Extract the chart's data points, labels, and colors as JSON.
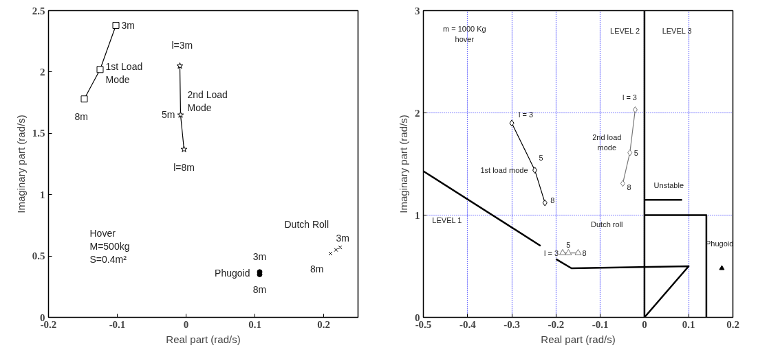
{
  "chart_data": [
    {
      "type": "scatter",
      "xlabel": "Real part (rad/s)",
      "ylabel": "Imaginary part (rad/s)",
      "xlim": [
        -0.2,
        0.25
      ],
      "ylim": [
        0,
        2.5
      ],
      "xticks": [
        -0.2,
        -0.1,
        0,
        0.1,
        0.2
      ],
      "yticks": [
        0,
        0.5,
        1,
        1.5,
        2,
        2.5
      ],
      "grid": false,
      "series": [
        {
          "type": "line",
          "marker": "square",
          "color": "#000000",
          "x": [
            -0.102,
            -0.125,
            -0.148
          ],
          "values": [
            2.38,
            2.02,
            1.78
          ]
        },
        {
          "type": "line",
          "marker": "star",
          "color": "#000000",
          "x": [
            -0.009,
            -0.008,
            -0.003
          ],
          "values": [
            2.05,
            1.65,
            1.37
          ]
        },
        {
          "marker": "circle",
          "color": "#000000",
          "x": [
            0.107,
            0.107
          ],
          "values": [
            0.37,
            0.35
          ]
        },
        {
          "marker": "cross",
          "color": "#000000",
          "x": [
            0.21,
            0.218,
            0.224
          ],
          "values": [
            0.52,
            0.55,
            0.57
          ]
        }
      ],
      "annotations": [
        {
          "text": "3m",
          "x": -0.102,
          "y": 2.38
        },
        "1st Load\nMode",
        {
          "text": "8m",
          "x": -0.148,
          "y": 1.78
        },
        {
          "text": "l=3m",
          "x": -0.009,
          "y": 2.05
        },
        "2nd Load\nMode",
        {
          "text": "5m",
          "x": -0.008,
          "y": 1.65
        },
        {
          "text": "l=8m",
          "x": -0.003,
          "y": 1.37
        },
        "Hover\nM=500kg\nS=0.4m²",
        {
          "text": "Phugoid",
          "x": 0.107,
          "y": 0.36
        },
        {
          "text": "3m",
          "x": 0.107,
          "y": 0.37
        },
        {
          "text": "8m",
          "x": 0.107,
          "y": 0.35
        },
        "Dutch Roll",
        {
          "text": "3m",
          "x": 0.224,
          "y": 0.57
        },
        {
          "text": "8m",
          "x": 0.21,
          "y": 0.52
        }
      ]
    },
    {
      "type": "scatter",
      "xlabel": "Real part (rad/s)",
      "ylabel": "Imaginary part (rad/s)",
      "xlim": [
        -0.5,
        0.2
      ],
      "ylim": [
        0,
        3
      ],
      "xticks": [
        -0.5,
        -0.4,
        -0.3,
        -0.2,
        -0.1,
        0,
        0.1,
        0.2
      ],
      "yticks": [
        0,
        1,
        2,
        3
      ],
      "grid": true,
      "series": [
        {
          "type": "line",
          "marker": "diamond",
          "color": "#000000",
          "x": [
            -0.3,
            -0.248,
            -0.225
          ],
          "values": [
            1.9,
            1.44,
            1.12
          ]
        },
        {
          "type": "line",
          "marker": "diamond",
          "color": "#777777",
          "x": [
            -0.021,
            -0.033,
            -0.049
          ],
          "values": [
            2.03,
            1.61,
            1.31
          ]
        },
        {
          "type": "line",
          "marker": "triangle",
          "color": "#777777",
          "x": [
            -0.185,
            -0.172,
            -0.15
          ],
          "values": [
            0.63,
            0.63,
            0.63
          ]
        },
        {
          "marker": "triangle",
          "color": "#000000",
          "x": [
            0.175
          ],
          "values": [
            0.48
          ]
        },
        {
          "type": "line",
          "marker": "none",
          "color": "#000000",
          "x": [
            -0.5,
            -0.235
          ],
          "values": [
            1.43,
            0.7
          ]
        },
        {
          "type": "line",
          "marker": "none",
          "color": "#000000",
          "x": [
            -0.2,
            -0.165,
            0.1,
            0
          ],
          "values": [
            0.57,
            0.48,
            0.5,
            0
          ]
        },
        {
          "type": "line",
          "marker": "none",
          "color": "#000000",
          "x": [
            0,
            0.14,
            0.14
          ],
          "values": [
            1,
            1,
            0
          ]
        },
        {
          "type": "line",
          "marker": "none",
          "color": "#000000",
          "x": [
            0,
            0.085
          ],
          "values": [
            1.15,
            1.15
          ]
        }
      ],
      "ref_lines": [
        {
          "axis": "x",
          "value": 0,
          "label": null,
          "color": "#000000"
        }
      ],
      "annotations": [
        "m = 1000 Kg\nhover",
        "LEVEL 2",
        "LEVEL 3",
        {
          "text": "l = 3",
          "x": -0.3,
          "y": 1.9
        },
        {
          "text": "5",
          "x": -0.248,
          "y": 1.44
        },
        {
          "text": "1st load mode",
          "x": -0.248,
          "y": 1.44
        },
        {
          "text": "8",
          "x": -0.225,
          "y": 1.12
        },
        {
          "text": "l = 3",
          "x": -0.021,
          "y": 2.03
        },
        "2nd load\nmode",
        {
          "text": "5",
          "x": -0.033,
          "y": 1.61
        },
        {
          "text": "8",
          "x": -0.049,
          "y": 1.31
        },
        "Unstable",
        "LEVEL 1",
        "Dutch roll",
        {
          "text": "l = 3",
          "x": -0.185,
          "y": 0.63
        },
        {
          "text": "5",
          "x": -0.172,
          "y": 0.63
        },
        {
          "text": "8",
          "x": -0.15,
          "y": 0.63
        },
        "Phugoid"
      ]
    }
  ]
}
